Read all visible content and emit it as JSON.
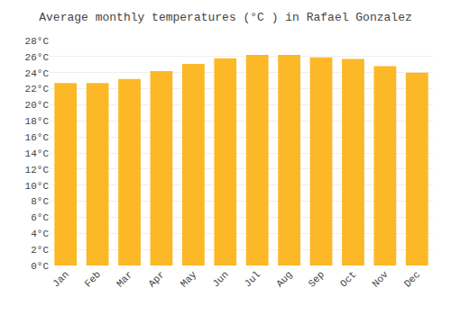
{
  "chart_data": {
    "type": "bar",
    "title": "Average monthly temperatures (°C ) in Rafael Gonzalez",
    "categories": [
      "Jan",
      "Feb",
      "Mar",
      "Apr",
      "May",
      "Jun",
      "Jul",
      "Aug",
      "Sep",
      "Oct",
      "Nov",
      "Dec"
    ],
    "values": [
      22.7,
      22.7,
      23.2,
      24.2,
      25.1,
      25.8,
      26.2,
      26.2,
      25.9,
      25.7,
      24.8,
      24.0
    ],
    "color": "#FDB827",
    "ylim": [
      0,
      28
    ],
    "yticks": [
      {
        "value": 0,
        "label": "0°C"
      },
      {
        "value": 2,
        "label": "2°C"
      },
      {
        "value": 4,
        "label": "4°C"
      },
      {
        "value": 6,
        "label": "6°C"
      },
      {
        "value": 8,
        "label": "8°C"
      },
      {
        "value": 10,
        "label": "10°C"
      },
      {
        "value": 12,
        "label": "12°C"
      },
      {
        "value": 14,
        "label": "14°C"
      },
      {
        "value": 16,
        "label": "16°C"
      },
      {
        "value": 18,
        "label": "18°C"
      },
      {
        "value": 20,
        "label": "20°C"
      },
      {
        "value": 22,
        "label": "22°C"
      },
      {
        "value": 24,
        "label": "24°C"
      },
      {
        "value": 26,
        "label": "26°C"
      },
      {
        "value": 28,
        "label": "28°C"
      }
    ],
    "grid": true
  }
}
